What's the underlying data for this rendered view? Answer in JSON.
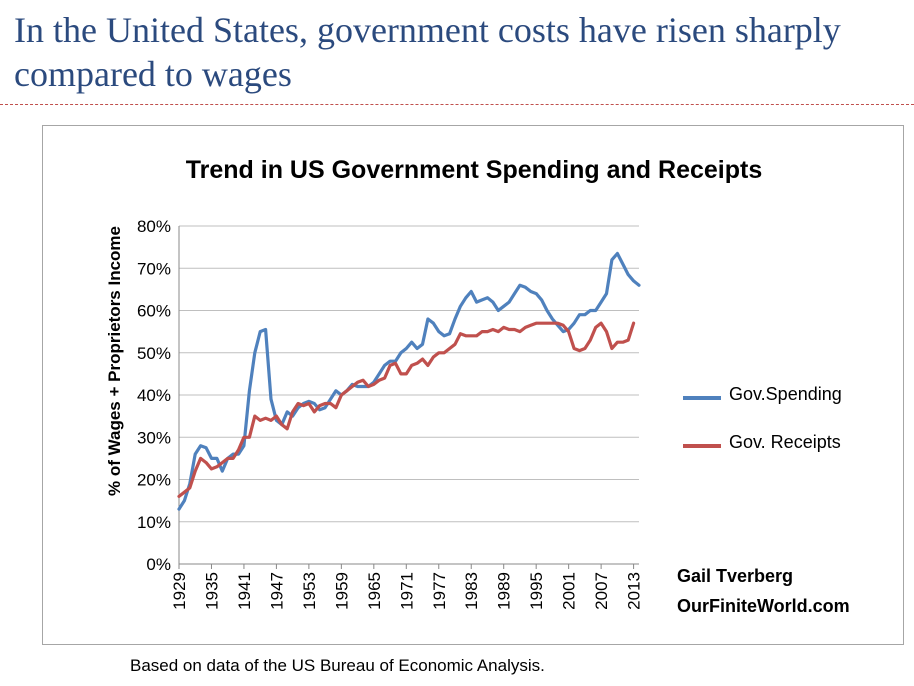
{
  "slide": {
    "title": "In the United States, government costs have risen sharply compared to wages",
    "source_note": "Based on data of the US Bureau of Economic Analysis.",
    "title_color": "#2b4a7e",
    "rule_color": "#c0504d"
  },
  "chart_data": {
    "type": "line",
    "title": "Trend in US Government Spending and Receipts",
    "xlabel": "",
    "ylabel": "% of Wages + Proprietors Income",
    "x_tick_labels": [
      "1929",
      "1935",
      "1941",
      "1947",
      "1953",
      "1959",
      "1965",
      "1971",
      "1977",
      "1983",
      "1989",
      "1995",
      "2001",
      "2007",
      "2013"
    ],
    "y_tick_labels": [
      "0%",
      "10%",
      "20%",
      "30%",
      "40%",
      "50%",
      "60%",
      "70%",
      "80%"
    ],
    "ylim": [
      0,
      80
    ],
    "xlim": [
      1929,
      2013
    ],
    "grid": "horizontal",
    "legend_position": "right",
    "credit": [
      "Gail Tverberg",
      "OurFiniteWorld.com"
    ],
    "series": [
      {
        "name": "Gov.Spending",
        "color": "#4f81bd",
        "points": [
          [
            1929,
            13
          ],
          [
            1930,
            15
          ],
          [
            1931,
            19
          ],
          [
            1932,
            26
          ],
          [
            1933,
            28
          ],
          [
            1934,
            27.5
          ],
          [
            1935,
            25
          ],
          [
            1936,
            25
          ],
          [
            1937,
            22
          ],
          [
            1938,
            25
          ],
          [
            1939,
            26
          ],
          [
            1940,
            26
          ],
          [
            1941,
            28
          ],
          [
            1942,
            41
          ],
          [
            1943,
            50
          ],
          [
            1944,
            55
          ],
          [
            1945,
            55.5
          ],
          [
            1946,
            39
          ],
          [
            1947,
            34
          ],
          [
            1948,
            33
          ],
          [
            1949,
            36
          ],
          [
            1950,
            35
          ],
          [
            1951,
            37
          ],
          [
            1952,
            38
          ],
          [
            1953,
            38.5
          ],
          [
            1954,
            38
          ],
          [
            1955,
            36.5
          ],
          [
            1956,
            37
          ],
          [
            1957,
            39
          ],
          [
            1958,
            41
          ],
          [
            1959,
            40
          ],
          [
            1960,
            41
          ],
          [
            1961,
            42.5
          ],
          [
            1962,
            42
          ],
          [
            1963,
            42
          ],
          [
            1964,
            42
          ],
          [
            1965,
            43
          ],
          [
            1966,
            45
          ],
          [
            1967,
            47
          ],
          [
            1968,
            48
          ],
          [
            1969,
            48
          ],
          [
            1970,
            50
          ],
          [
            1971,
            51
          ],
          [
            1972,
            52.5
          ],
          [
            1973,
            51
          ],
          [
            1974,
            52
          ],
          [
            1975,
            58
          ],
          [
            1976,
            57
          ],
          [
            1977,
            55
          ],
          [
            1978,
            54
          ],
          [
            1979,
            54.5
          ],
          [
            1980,
            58
          ],
          [
            1981,
            61
          ],
          [
            1982,
            63
          ],
          [
            1983,
            64.5
          ],
          [
            1984,
            62
          ],
          [
            1985,
            62.5
          ],
          [
            1986,
            63
          ],
          [
            1987,
            62
          ],
          [
            1988,
            60
          ],
          [
            1989,
            61
          ],
          [
            1990,
            62
          ],
          [
            1991,
            64
          ],
          [
            1992,
            66
          ],
          [
            1993,
            65.5
          ],
          [
            1994,
            64.5
          ],
          [
            1995,
            64
          ],
          [
            1996,
            62.5
          ],
          [
            1997,
            60
          ],
          [
            1998,
            58
          ],
          [
            1999,
            56.5
          ],
          [
            2000,
            55
          ],
          [
            2001,
            55.5
          ],
          [
            2002,
            57
          ],
          [
            2003,
            59
          ],
          [
            2004,
            59
          ],
          [
            2005,
            60
          ],
          [
            2006,
            60
          ],
          [
            2007,
            62
          ],
          [
            2008,
            64
          ],
          [
            2009,
            72
          ],
          [
            2010,
            73.5
          ],
          [
            2011,
            71
          ],
          [
            2012,
            68.5
          ],
          [
            2013,
            67
          ],
          [
            2014,
            66
          ]
        ]
      },
      {
        "name": "Gov. Receipts",
        "color": "#c0504d",
        "points": [
          [
            1929,
            16
          ],
          [
            1930,
            17
          ],
          [
            1931,
            18
          ],
          [
            1932,
            22
          ],
          [
            1933,
            25
          ],
          [
            1934,
            24
          ],
          [
            1935,
            22.5
          ],
          [
            1936,
            23
          ],
          [
            1937,
            24
          ],
          [
            1938,
            25
          ],
          [
            1939,
            25
          ],
          [
            1940,
            27
          ],
          [
            1941,
            30
          ],
          [
            1942,
            30
          ],
          [
            1943,
            35
          ],
          [
            1944,
            34
          ],
          [
            1945,
            34.5
          ],
          [
            1946,
            34
          ],
          [
            1947,
            35
          ],
          [
            1948,
            33
          ],
          [
            1949,
            32
          ],
          [
            1950,
            36
          ],
          [
            1951,
            38
          ],
          [
            1952,
            37.5
          ],
          [
            1953,
            38
          ],
          [
            1954,
            36
          ],
          [
            1955,
            37.5
          ],
          [
            1956,
            38
          ],
          [
            1957,
            38
          ],
          [
            1958,
            37
          ],
          [
            1959,
            40
          ],
          [
            1960,
            41
          ],
          [
            1961,
            42
          ],
          [
            1962,
            43
          ],
          [
            1963,
            43.5
          ],
          [
            1964,
            42
          ],
          [
            1965,
            42.5
          ],
          [
            1966,
            43.5
          ],
          [
            1967,
            44
          ],
          [
            1968,
            47
          ],
          [
            1969,
            47.5
          ],
          [
            1970,
            45
          ],
          [
            1971,
            45
          ],
          [
            1972,
            47
          ],
          [
            1973,
            47.5
          ],
          [
            1974,
            48.5
          ],
          [
            1975,
            47
          ],
          [
            1976,
            49
          ],
          [
            1977,
            50
          ],
          [
            1978,
            50
          ],
          [
            1979,
            51
          ],
          [
            1980,
            52
          ],
          [
            1981,
            54.5
          ],
          [
            1982,
            54
          ],
          [
            1983,
            54
          ],
          [
            1984,
            54
          ],
          [
            1985,
            55
          ],
          [
            1986,
            55
          ],
          [
            1987,
            55.5
          ],
          [
            1988,
            55
          ],
          [
            1989,
            56
          ],
          [
            1990,
            55.5
          ],
          [
            1991,
            55.5
          ],
          [
            1992,
            55
          ],
          [
            1993,
            56
          ],
          [
            1994,
            56.5
          ],
          [
            1995,
            57
          ],
          [
            1996,
            57
          ],
          [
            1997,
            57
          ],
          [
            1998,
            57
          ],
          [
            1999,
            57
          ],
          [
            2000,
            56.5
          ],
          [
            2001,
            55
          ],
          [
            2002,
            51
          ],
          [
            2003,
            50.5
          ],
          [
            2004,
            51
          ],
          [
            2005,
            53
          ],
          [
            2006,
            56
          ],
          [
            2007,
            57
          ],
          [
            2008,
            55
          ],
          [
            2009,
            51
          ],
          [
            2010,
            52.5
          ],
          [
            2011,
            52.5
          ],
          [
            2012,
            53
          ],
          [
            2013,
            57
          ]
        ]
      }
    ]
  }
}
